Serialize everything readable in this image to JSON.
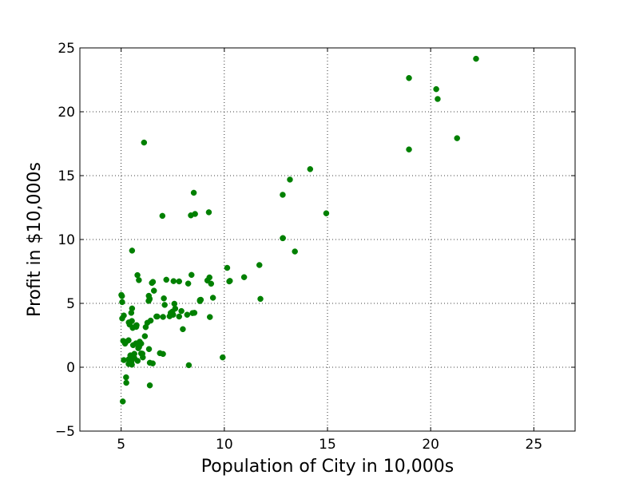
{
  "chart_data": {
    "type": "scatter",
    "title": "",
    "xlabel": "Population of City in 10,000s",
    "ylabel": "Profit in $10,000s",
    "xlim": [
      3,
      27
    ],
    "ylim": [
      -5,
      25
    ],
    "xticks": [
      5,
      10,
      15,
      20,
      25
    ],
    "yticks": [
      -5,
      0,
      5,
      10,
      15,
      20,
      25
    ],
    "xtick_labels": [
      "5",
      "10",
      "15",
      "20",
      "25"
    ],
    "ytick_labels": [
      "−5",
      "0",
      "5",
      "10",
      "15",
      "20",
      "25"
    ],
    "grid": true,
    "marker_color": "#008000",
    "series": [
      {
        "points": [
          [
            6.11,
            17.59
          ],
          [
            5.53,
            9.13
          ],
          [
            8.52,
            13.66
          ],
          [
            7.0,
            11.85
          ],
          [
            5.86,
            6.82
          ],
          [
            8.38,
            11.89
          ],
          [
            7.48,
            4.35
          ],
          [
            8.58,
            12.0
          ],
          [
            6.49,
            6.6
          ],
          [
            5.05,
            3.82
          ],
          [
            5.71,
            3.25
          ],
          [
            14.16,
            15.51
          ],
          [
            5.73,
            3.16
          ],
          [
            8.41,
            7.23
          ],
          [
            5.64,
            0.72
          ],
          [
            5.37,
            3.51
          ],
          [
            6.37,
            5.3
          ],
          [
            5.13,
            0.56
          ],
          [
            6.43,
            3.65
          ],
          [
            7.07,
            5.39
          ],
          [
            6.19,
            3.14
          ],
          [
            20.27,
            21.77
          ],
          [
            5.49,
            4.26
          ],
          [
            6.33,
            5.19
          ],
          [
            5.56,
            3.08
          ],
          [
            18.95,
            22.64
          ],
          [
            12.83,
            13.5
          ],
          [
            10.96,
            7.05
          ],
          [
            13.18,
            14.69
          ],
          [
            22.2,
            24.15
          ],
          [
            5.25,
            -1.22
          ],
          [
            6.59,
            5.99
          ],
          [
            9.25,
            12.13
          ],
          [
            5.19,
            1.85
          ],
          [
            9.36,
            6.54
          ],
          [
            8.82,
            5.26
          ],
          [
            5.89,
            1.84
          ],
          [
            12.84,
            10.11
          ],
          [
            6.54,
            6.68
          ],
          [
            5.41,
            3.34
          ],
          [
            5.58,
            1.73
          ],
          [
            7.03,
            1.04
          ],
          [
            21.28,
            17.93
          ],
          [
            8.46,
            4.24
          ],
          [
            5.97,
            1.85
          ],
          [
            5.04,
            5.57
          ],
          [
            8.28,
            0.16
          ],
          [
            11.75,
            5.35
          ],
          [
            7.03,
            3.94
          ],
          [
            8.55,
            4.26
          ],
          [
            5.46,
            0.48
          ],
          [
            5.79,
            7.21
          ],
          [
            5.5,
            0.44
          ],
          [
            6.71,
            3.97
          ],
          [
            6.03,
            1.06
          ],
          [
            5.64,
            1.05
          ],
          [
            5.52,
            0.2
          ],
          [
            7.11,
            4.88
          ],
          [
            8.82,
            5.18
          ],
          [
            5.36,
            0.61
          ],
          [
            5.01,
            5.66
          ],
          [
            5.08,
            -2.68
          ],
          [
            5.13,
            4.05
          ],
          [
            5.83,
            1.49
          ],
          [
            6.53,
            0.3
          ],
          [
            9.92,
            0.77
          ],
          [
            5.75,
            3.29
          ],
          [
            7.54,
            6.74
          ],
          [
            5.36,
            2.11
          ],
          [
            5.8,
            0.5
          ],
          [
            5.53,
            4.6
          ],
          [
            5.24,
            1.99
          ],
          [
            5.45,
            0.93
          ],
          [
            5.57,
            0.91
          ],
          [
            5.36,
            0.26
          ],
          [
            6.05,
            0.77
          ],
          [
            5.1,
            2.06
          ],
          [
            5.52,
            3.62
          ],
          [
            5.24,
            -0.79
          ],
          [
            7.19,
            6.85
          ],
          [
            6.15,
            2.43
          ],
          [
            6.35,
            1.42
          ],
          [
            7.81,
            6.72
          ],
          [
            6.38,
            5.36
          ],
          [
            9.28,
            7.03
          ],
          [
            7.99,
            2.98
          ],
          [
            9.3,
            3.93
          ],
          [
            8.86,
            5.28
          ],
          [
            5.87,
            1.58
          ],
          [
            10.24,
            6.72
          ],
          [
            7.92,
            4.4
          ],
          [
            6.39,
            -1.42
          ],
          [
            5.05,
            5.1
          ],
          [
            5.72,
            1.87
          ],
          [
            7.58,
            4.97
          ],
          [
            5.97,
            1.08
          ],
          [
            6.75,
            3.97
          ],
          [
            8.25,
            6.55
          ],
          [
            10.14,
            7.78
          ],
          [
            11.7,
            8.0
          ],
          [
            9.45,
            5.44
          ],
          [
            7.52,
            4.11
          ],
          [
            7.62,
            4.59
          ],
          [
            9.18,
            6.79
          ],
          [
            7.81,
            3.97
          ],
          [
            6.27,
            3.48
          ],
          [
            6.34,
            5.59
          ],
          [
            10.27,
            6.76
          ],
          [
            12.83,
            10.1
          ],
          [
            13.42,
            9.06
          ],
          [
            14.94,
            12.05
          ],
          [
            18.95,
            17.05
          ],
          [
            20.34,
            21.0
          ],
          [
            7.4,
            4.25
          ],
          [
            7.35,
            3.99
          ],
          [
            8.2,
            4.11
          ],
          [
            6.39,
            0.35
          ],
          [
            5.45,
            0.9
          ],
          [
            6.88,
            1.1
          ],
          [
            5.9,
            2.0
          ]
        ]
      }
    ]
  }
}
